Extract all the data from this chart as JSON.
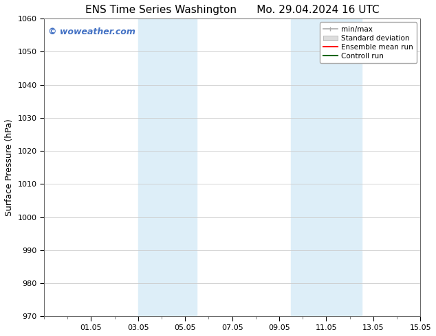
{
  "title_left": "ENS Time Series Washington",
  "title_right": "Mo. 29.04.2024 16 UTC",
  "ylabel": "Surface Pressure (hPa)",
  "ylim": [
    970,
    1060
  ],
  "yticks": [
    970,
    980,
    990,
    1000,
    1010,
    1020,
    1030,
    1040,
    1050,
    1060
  ],
  "xlim": [
    0,
    16
  ],
  "xtick_labels": [
    "01.05",
    "03.05",
    "05.05",
    "07.05",
    "09.05",
    "11.05",
    "13.05",
    "15.05"
  ],
  "xtick_positions": [
    2,
    4,
    6,
    8,
    10,
    12,
    14,
    16
  ],
  "shaded_bands": [
    {
      "x_start": 4.0,
      "x_end": 6.5
    },
    {
      "x_start": 10.5,
      "x_end": 13.5
    }
  ],
  "shaded_color": "#ddeef8",
  "watermark_text": "© woweather.com",
  "watermark_color": "#4472c4",
  "legend_labels": [
    "min/max",
    "Standard deviation",
    "Ensemble mean run",
    "Controll run"
  ],
  "background_color": "#ffffff",
  "grid_color": "#cccccc",
  "title_fontsize": 11,
  "label_fontsize": 9,
  "tick_fontsize": 8,
  "legend_fontsize": 7.5
}
